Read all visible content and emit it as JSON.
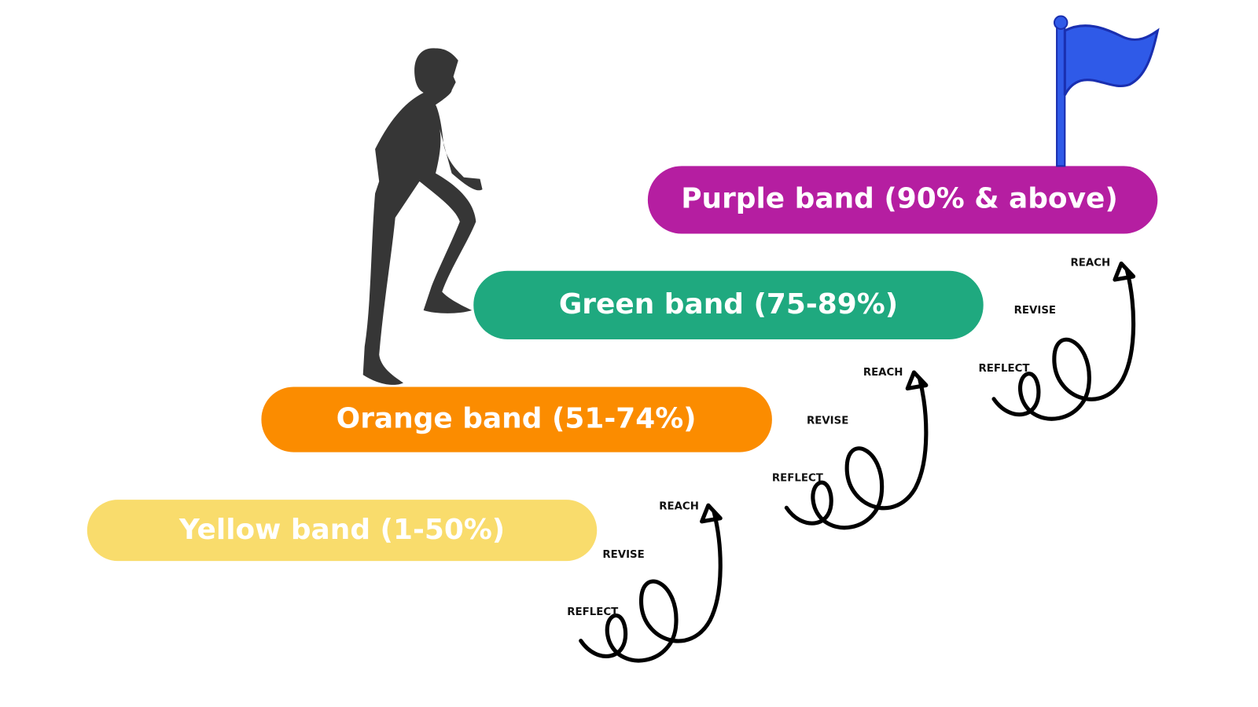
{
  "bands": [
    {
      "label": "Yellow band (1-50%)"
    },
    {
      "label": "Orange band (51-74%)"
    },
    {
      "label": "Green band (75-89%)"
    },
    {
      "label": "Purple band (90% & above)"
    }
  ],
  "loops": [
    {
      "labels": [
        "REFLECT",
        "REVISE",
        "REACH"
      ]
    },
    {
      "labels": [
        "REFLECT",
        "REVISE",
        "REACH"
      ]
    },
    {
      "labels": [
        "REFLECT",
        "REVISE",
        "REACH"
      ]
    }
  ]
}
